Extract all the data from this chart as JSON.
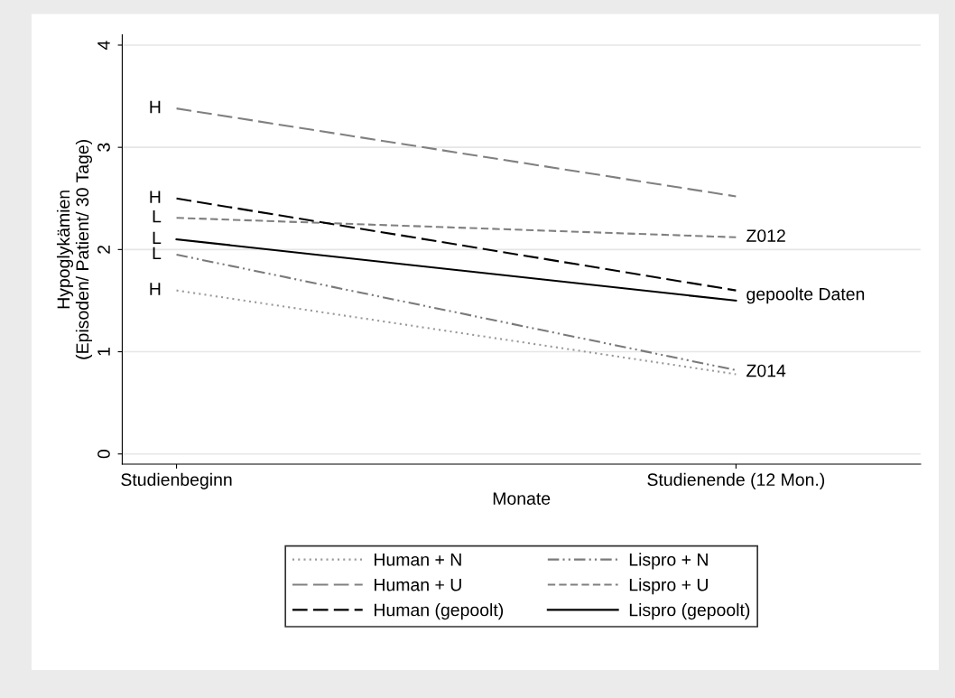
{
  "chart_data": {
    "type": "line",
    "xlabel": "Monate",
    "ylabel": "Hypoglykämien\n(Episoden/ Patient/ 30 Tage)",
    "categories": [
      "Studienbeginn",
      "Studienende (12 Mon.)"
    ],
    "series": [
      {
        "name": "Human + N",
        "color": "#9a9a9a",
        "line_style": "dotted",
        "values": [
          1.6,
          0.78
        ]
      },
      {
        "name": "Lispro + N",
        "color": "#7a7a7a",
        "line_style": "dashdotdot",
        "values": [
          1.95,
          0.82
        ]
      },
      {
        "name": "Human + U",
        "color": "#808080",
        "line_style": "longdash",
        "values": [
          3.38,
          2.52
        ]
      },
      {
        "name": "Lispro + U",
        "color": "#808080",
        "line_style": "dashed",
        "values": [
          2.31,
          2.12
        ]
      },
      {
        "name": "Human (gepoolt)",
        "color": "#000000",
        "line_style": "longdash",
        "values": [
          2.5,
          1.6
        ]
      },
      {
        "name": "Lispro (gepoolt)",
        "color": "#000000",
        "line_style": "solid",
        "values": [
          2.1,
          1.5
        ]
      }
    ],
    "annotations": [
      {
        "text": "H",
        "x": "Studienbeginn",
        "y": 3.38
      },
      {
        "text": "H",
        "x": "Studienbeginn",
        "y": 2.5
      },
      {
        "text": "L",
        "x": "Studienbeginn",
        "y": 2.31
      },
      {
        "text": "L",
        "x": "Studienbeginn",
        "y": 2.1
      },
      {
        "text": "L",
        "x": "Studienbeginn",
        "y": 1.95
      },
      {
        "text": "H",
        "x": "Studienbeginn",
        "y": 1.6
      },
      {
        "text": "Z012",
        "x": "Studienende (12 Mon.)",
        "y": 2.12
      },
      {
        "text": "gepoolte Daten",
        "x": "Studienende (12 Mon.)",
        "y": 1.55
      },
      {
        "text": "Z014",
        "x": "Studienende (12 Mon.)",
        "y": 0.8
      }
    ],
    "ylim": [
      -0.1,
      4.1
    ],
    "yticks": [
      0,
      1,
      2,
      3,
      4
    ],
    "grid": "y",
    "legend": "bottom",
    "marker": "none"
  }
}
